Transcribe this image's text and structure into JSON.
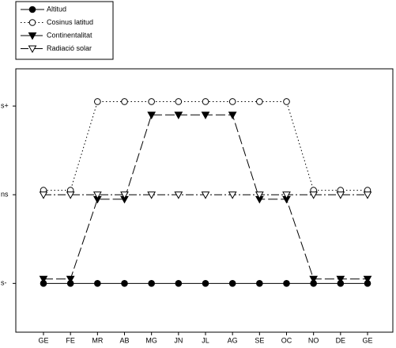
{
  "chart_data": {
    "type": "line",
    "categories": [
      "GE",
      "FE",
      "MR",
      "AB",
      "MG",
      "JN",
      "JL",
      "AG",
      "SE",
      "OC",
      "NO",
      "DE",
      "GE"
    ],
    "ylim": [
      -1.55,
      1.42
    ],
    "yticks": [
      {
        "value": -1,
        "label": "s-"
      },
      {
        "value": 0,
        "label": "ns"
      },
      {
        "value": 1,
        "label": "s+"
      }
    ],
    "series": [
      {
        "name": "Altitud",
        "color": "#000000",
        "marker": "filled-circle",
        "dash": "solid",
        "values": [
          -1,
          -1,
          -1,
          -1,
          -1,
          -1,
          -1,
          -1,
          -1,
          -1,
          -1,
          -1,
          -1
        ]
      },
      {
        "name": "Cosinus latitud",
        "color": "#000000",
        "marker": "open-circle",
        "dash": "dotted",
        "values": [
          0.05,
          0.05,
          1.05,
          1.05,
          1.05,
          1.05,
          1.05,
          1.05,
          1.05,
          1.05,
          0.05,
          0.05,
          0.05
        ]
      },
      {
        "name": "Continentalitat",
        "color": "#000000",
        "marker": "filled-triangle",
        "dash": "long-dash",
        "values": [
          -0.95,
          -0.95,
          -0.05,
          -0.05,
          0.9,
          0.9,
          0.9,
          0.9,
          -0.05,
          -0.05,
          -0.95,
          -0.95,
          -0.95
        ]
      },
      {
        "name": "Radiació solar",
        "color": "#000000",
        "marker": "open-triangle",
        "dash": "dash-dot",
        "values": [
          0,
          0,
          0,
          0,
          0,
          0,
          0,
          0,
          0,
          0,
          0,
          0,
          0
        ]
      }
    ]
  }
}
